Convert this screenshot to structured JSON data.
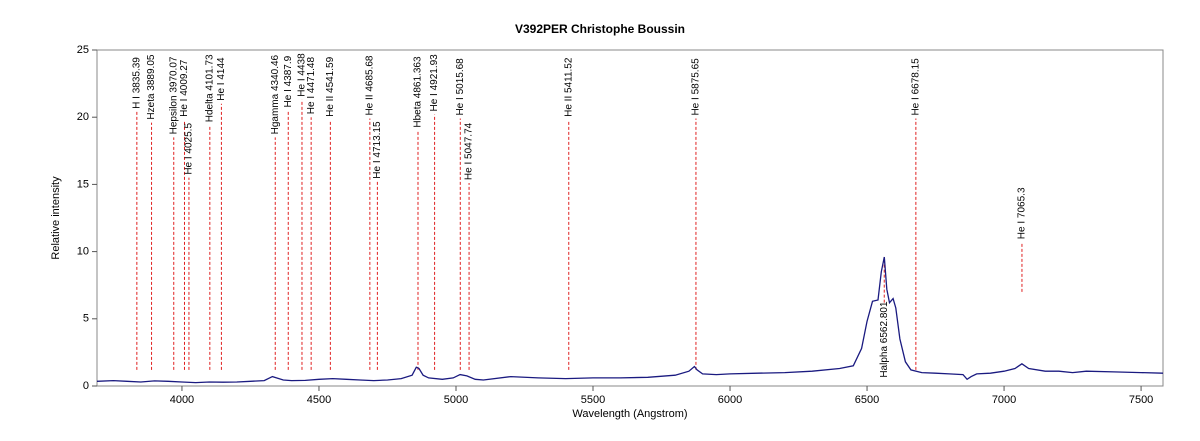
{
  "chart_data": {
    "type": "spectrum",
    "title": "V392PER  Christophe Boussin",
    "x_label": "Wavelength (Angstrom)",
    "y_label": "Relative intensity",
    "xlim": [
      3690,
      7580
    ],
    "ylim": [
      0,
      25
    ],
    "xticks": [
      4000,
      4500,
      5000,
      5500,
      6000,
      6500,
      7000,
      7500
    ],
    "yticks": [
      0,
      5,
      10,
      15,
      20,
      25
    ],
    "grid": false,
    "series": [
      {
        "color": "#1a1a80",
        "x": [
          3690,
          3750,
          3800,
          3850,
          3900,
          3950,
          4000,
          4050,
          4100,
          4150,
          4200,
          4250,
          4300,
          4330,
          4345,
          4370,
          4400,
          4450,
          4500,
          4550,
          4600,
          4650,
          4700,
          4750,
          4800,
          4840,
          4855,
          4865,
          4880,
          4900,
          4950,
          4990,
          5015,
          5040,
          5070,
          5100,
          5200,
          5300,
          5400,
          5500,
          5600,
          5700,
          5800,
          5850,
          5870,
          5880,
          5900,
          5950,
          6000,
          6100,
          6200,
          6300,
          6400,
          6450,
          6480,
          6500,
          6520,
          6540,
          6552,
          6563,
          6572,
          6582,
          6595,
          6605,
          6620,
          6640,
          6660,
          6700,
          6750,
          6800,
          6850,
          6865,
          6880,
          6900,
          6950,
          7000,
          7040,
          7065,
          7090,
          7150,
          7200,
          7250,
          7300,
          7400,
          7500,
          7580
        ],
        "values": [
          0.35,
          0.4,
          0.35,
          0.3,
          0.38,
          0.35,
          0.3,
          0.25,
          0.3,
          0.28,
          0.3,
          0.35,
          0.4,
          0.7,
          0.6,
          0.45,
          0.4,
          0.42,
          0.5,
          0.55,
          0.5,
          0.45,
          0.4,
          0.45,
          0.55,
          0.8,
          1.4,
          1.3,
          0.8,
          0.6,
          0.5,
          0.6,
          0.85,
          0.75,
          0.5,
          0.45,
          0.7,
          0.6,
          0.55,
          0.6,
          0.6,
          0.65,
          0.8,
          1.1,
          1.45,
          1.2,
          0.9,
          0.85,
          0.9,
          0.95,
          1.0,
          1.1,
          1.3,
          1.5,
          2.8,
          4.8,
          6.3,
          6.4,
          8.5,
          9.6,
          7.2,
          6.2,
          6.5,
          5.8,
          3.5,
          1.8,
          1.2,
          1.0,
          0.95,
          0.9,
          0.85,
          0.5,
          0.7,
          0.9,
          0.95,
          1.1,
          1.3,
          1.65,
          1.3,
          1.1,
          1.1,
          1.0,
          1.1,
          1.05,
          1.0,
          0.95
        ]
      }
    ],
    "lines": [
      {
        "label": "H I 3835.39",
        "wavelength": 3835.39,
        "y": [
          1.2,
          20.4
        ]
      },
      {
        "label": "Hzeta 3889.05",
        "wavelength": 3889.05,
        "y": [
          1.2,
          19.6
        ]
      },
      {
        "label": "Hepsilon 3970.07",
        "wavelength": 3970.07,
        "y": [
          1.2,
          18.5
        ]
      },
      {
        "label": "He I 4009.27",
        "wavelength": 4009.27,
        "y": [
          1.2,
          19.8
        ]
      },
      {
        "label": "He I 4025.5",
        "wavelength": 4025.5,
        "y": [
          1.2,
          15.5
        ]
      },
      {
        "label": "Hdelta 4101.73",
        "wavelength": 4101.73,
        "y": [
          1.2,
          19.4
        ]
      },
      {
        "label": "He I 4144",
        "wavelength": 4144,
        "y": [
          1.2,
          21
        ]
      },
      {
        "label": "Hgamma 4340.46",
        "wavelength": 4340.46,
        "y": [
          1.2,
          18.5
        ]
      },
      {
        "label": "He I 4387.9",
        "wavelength": 4387.9,
        "y": [
          1.2,
          20.5
        ]
      },
      {
        "label": "He I 4438",
        "wavelength": 4438,
        "y": [
          1.2,
          21.3
        ]
      },
      {
        "label": "He I 4471.48",
        "wavelength": 4471.48,
        "y": [
          1.2,
          20
        ]
      },
      {
        "label": "He II 4541.59",
        "wavelength": 4541.59,
        "y": [
          1.2,
          19.8
        ]
      },
      {
        "label": "He II 4685.68",
        "wavelength": 4685.68,
        "y": [
          1.2,
          19.9
        ]
      },
      {
        "label": "He I 4713.15",
        "wavelength": 4713.15,
        "y": [
          1.2,
          15.2
        ]
      },
      {
        "label": "Hbeta 4861.363",
        "wavelength": 4861.363,
        "y": [
          1.2,
          19
        ]
      },
      {
        "label": "He I 4921.93",
        "wavelength": 4921.93,
        "y": [
          1.2,
          20.2
        ]
      },
      {
        "label": "He I 5015.68",
        "wavelength": 5015.68,
        "y": [
          1.2,
          19.9
        ]
      },
      {
        "label": "He I 5047.74",
        "wavelength": 5047.74,
        "y": [
          1.2,
          15.1
        ]
      },
      {
        "label": "He II 5411.52",
        "wavelength": 5411.52,
        "y": [
          1.2,
          19.8
        ]
      },
      {
        "label": "He I 5875.65",
        "wavelength": 5875.65,
        "y": [
          1.2,
          19.9
        ]
      },
      {
        "label": "Halpha 6562.801",
        "wavelength": 6562.801,
        "y": [
          6.2,
          9.6
        ],
        "label_at": "bottom"
      },
      {
        "label": "He I 6678.15",
        "wavelength": 6678.15,
        "y": [
          1.2,
          19.9
        ]
      },
      {
        "label": "He I 7065.3",
        "wavelength": 7065.3,
        "y": [
          7.0,
          10.7
        ]
      }
    ]
  }
}
